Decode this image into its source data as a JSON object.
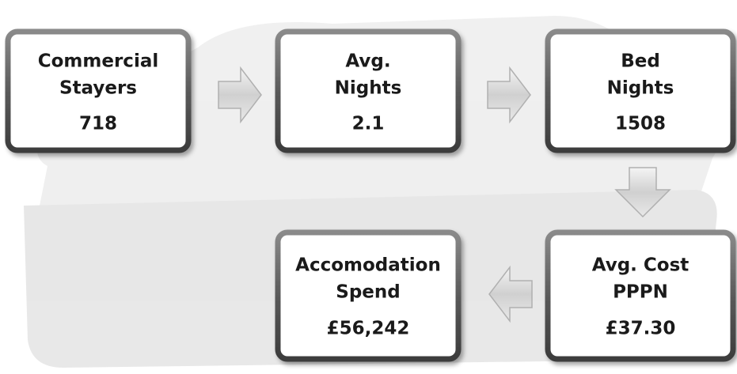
{
  "nodes": [
    {
      "label": [
        "Commercial",
        "Stayers"
      ],
      "value": "718"
    },
    {
      "label": [
        "Avg.",
        "Nights"
      ],
      "value": "2.1"
    },
    {
      "label": [
        "Bed",
        "Nights"
      ],
      "value": "1508"
    },
    {
      "label": [
        "Avg. Cost",
        "PPPN"
      ],
      "value": "£37.30"
    },
    {
      "label": [
        "Accomodation",
        "Spend"
      ],
      "value": "£56,242"
    }
  ]
}
